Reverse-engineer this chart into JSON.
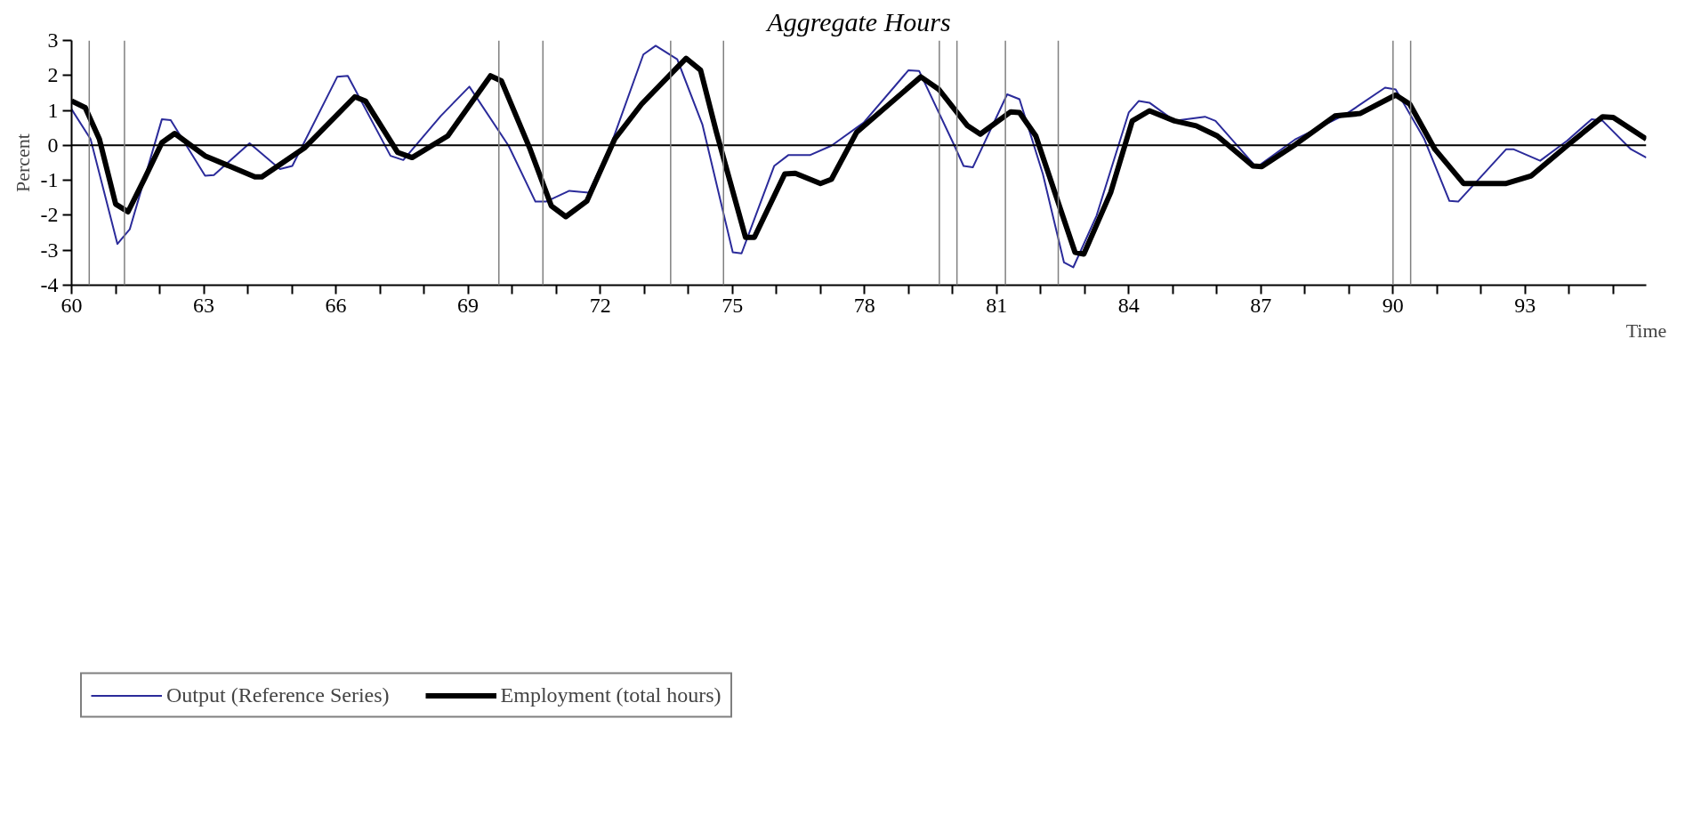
{
  "chart_data": {
    "type": "line",
    "title": "Aggregate Hours",
    "xlabel": "Time",
    "ylabel": "Percent",
    "xlim": [
      60,
      95.75
    ],
    "ylim": [
      -4,
      3
    ],
    "xticks": [
      60,
      {
        "value": 61,
        "label": null
      },
      {
        "value": 62,
        "label": null
      },
      63,
      {
        "value": 64,
        "label": null
      },
      {
        "value": 65,
        "label": null
      },
      66,
      {
        "value": 67,
        "label": null
      },
      {
        "value": 68,
        "label": null
      },
      69,
      {
        "value": 70,
        "label": null
      },
      {
        "value": 71,
        "label": null
      },
      72,
      {
        "value": 73,
        "label": null
      },
      {
        "value": 74,
        "label": null
      },
      75,
      {
        "value": 76,
        "label": null
      },
      {
        "value": 77,
        "label": null
      },
      78,
      {
        "value": 79,
        "label": null
      },
      {
        "value": 80,
        "label": null
      },
      81,
      {
        "value": 82,
        "label": null
      },
      {
        "value": 83,
        "label": null
      },
      84,
      {
        "value": 85,
        "label": null
      },
      {
        "value": 86,
        "label": null
      },
      87,
      {
        "value": 88,
        "label": null
      },
      {
        "value": 89,
        "label": null
      },
      90,
      {
        "value": 91,
        "label": null
      },
      {
        "value": 92,
        "label": null
      },
      93,
      {
        "value": 94,
        "label": null
      },
      {
        "value": 95,
        "label": null
      }
    ],
    "yticks": [
      -4,
      -3,
      -2,
      -1,
      0,
      1,
      2,
      3
    ],
    "grid": false,
    "legend": "bottom left",
    "marker": "none",
    "line_style": "solid",
    "ref_lines": [
      {
        "axis": "y",
        "value": 0,
        "label": null,
        "color": "#000000"
      },
      {
        "axis": "x",
        "value": 60.4,
        "label": null,
        "color": "#808080"
      },
      {
        "axis": "x",
        "value": 61.2,
        "label": null,
        "color": "#808080"
      },
      {
        "axis": "x",
        "value": 69.7,
        "label": null,
        "color": "#808080"
      },
      {
        "axis": "x",
        "value": 70.7,
        "label": null,
        "color": "#808080"
      },
      {
        "axis": "x",
        "value": 73.6,
        "label": null,
        "color": "#808080"
      },
      {
        "axis": "x",
        "value": 74.8,
        "label": null,
        "color": "#808080"
      },
      {
        "axis": "x",
        "value": 79.7,
        "label": null,
        "color": "#808080"
      },
      {
        "axis": "x",
        "value": 80.1,
        "label": null,
        "color": "#808080"
      },
      {
        "axis": "x",
        "value": 81.2,
        "label": null,
        "color": "#808080"
      },
      {
        "axis": "x",
        "value": 82.4,
        "label": null,
        "color": "#808080"
      },
      {
        "axis": "x",
        "value": 90.0,
        "label": null,
        "color": "#808080"
      },
      {
        "axis": "x",
        "value": 90.4,
        "label": null,
        "color": "#808080"
      }
    ],
    "series": [
      {
        "name": "Output (Reference Series)",
        "color": "#2b2b9a",
        "x": [
          60,
          60.43,
          61.04,
          61.32,
          62.05,
          62.25,
          63.03,
          63.23,
          64.04,
          64.73,
          65.01,
          66.03,
          66.27,
          67.24,
          67.53,
          68.38,
          69.03,
          69.92,
          70.53,
          70.77,
          71.3,
          71.74,
          72.24,
          72.98,
          73.26,
          73.75,
          74.32,
          75.01,
          75.21,
          75.95,
          76.27,
          76.76,
          77.25,
          77.98,
          79.0,
          79.24,
          80.01,
          80.25,
          80.46,
          81.24,
          81.52,
          82.05,
          82.53,
          82.74,
          83.27,
          84.0,
          84.23,
          84.47,
          85.04,
          85.73,
          85.97,
          86.9,
          87.79,
          88.93,
          89.82,
          90.06,
          90.71,
          91.28,
          91.48,
          92.57,
          92.73,
          93.34,
          93.95,
          94.51,
          94.76,
          95.4,
          95.75
        ],
        "values": [
          1.03,
          0.18,
          -2.82,
          -2.4,
          0.75,
          0.72,
          -0.87,
          -0.85,
          0.06,
          -0.68,
          -0.59,
          1.96,
          1.99,
          -0.3,
          -0.42,
          0.84,
          1.68,
          -0.01,
          -1.61,
          -1.61,
          -1.3,
          -1.35,
          0,
          2.6,
          2.85,
          2.46,
          0.6,
          -3.06,
          -3.09,
          -0.59,
          -0.28,
          -0.28,
          -0.01,
          0.65,
          2.15,
          2.13,
          0.08,
          -0.59,
          -0.63,
          1.46,
          1.32,
          -0.82,
          -3.35,
          -3.49,
          -2.01,
          0.94,
          1.27,
          1.22,
          0.7,
          0.82,
          0.7,
          -0.63,
          0.18,
          0.89,
          1.65,
          1.6,
          0.18,
          -1.59,
          -1.61,
          -0.11,
          -0.11,
          -0.44,
          0.13,
          0.75,
          0.7,
          -0.11,
          -0.35
        ]
      },
      {
        "name": "Employment (total hours)",
        "color": "#000000",
        "x": [
          60,
          60.31,
          60.63,
          61.0,
          61.28,
          61.65,
          62.05,
          62.34,
          63.03,
          64.16,
          64.32,
          65.3,
          66.43,
          66.67,
          67.4,
          67.73,
          68.54,
          69.51,
          69.76,
          70.41,
          70.89,
          71.22,
          71.7,
          72.33,
          72.94,
          73.95,
          74.28,
          74.64,
          75.3,
          75.5,
          76.19,
          76.43,
          77.0,
          77.25,
          77.82,
          79.28,
          79.69,
          80.34,
          80.63,
          81.32,
          81.52,
          81.89,
          82.78,
          82.98,
          83.59,
          84.08,
          84.47,
          85.04,
          85.53,
          86.01,
          86.82,
          87.02,
          87.79,
          88.68,
          89.25,
          90.06,
          90.38,
          90.95,
          91.6,
          92.57,
          93.14,
          93.95,
          94.76,
          95.0,
          95.75
        ],
        "values": [
          1.27,
          1.08,
          0.18,
          -1.68,
          -1.9,
          -0.97,
          0.08,
          0.34,
          -0.3,
          -0.9,
          -0.9,
          -0.06,
          1.39,
          1.27,
          -0.2,
          -0.35,
          0.27,
          1.99,
          1.84,
          -0.11,
          -1.73,
          -2.04,
          -1.59,
          0.18,
          1.18,
          2.49,
          2.15,
          0.37,
          -2.63,
          -2.63,
          -0.82,
          -0.8,
          -1.09,
          -0.97,
          0.37,
          1.96,
          1.6,
          0.56,
          0.32,
          0.96,
          0.94,
          0.27,
          -3.06,
          -3.11,
          -1.35,
          0.7,
          0.99,
          0.7,
          0.56,
          0.27,
          -0.59,
          -0.61,
          0.03,
          0.84,
          0.91,
          1.44,
          1.18,
          -0.11,
          -1.09,
          -1.09,
          -0.87,
          -0.01,
          0.82,
          0.8,
          0.18
        ]
      }
    ]
  }
}
